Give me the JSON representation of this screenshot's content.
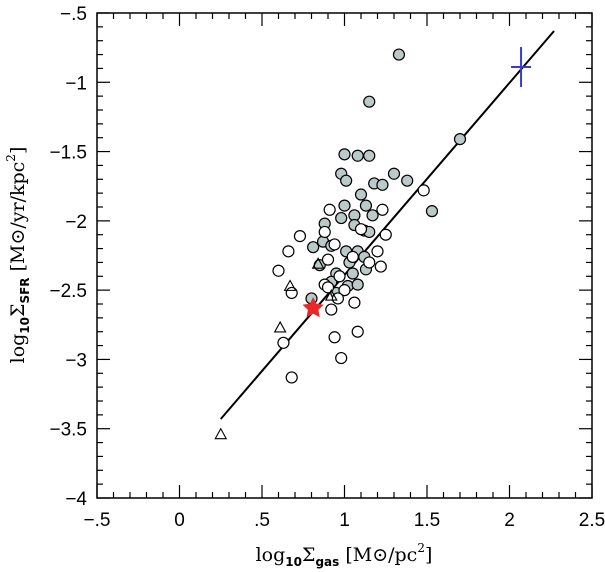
{
  "chart_data": {
    "type": "scatter",
    "title": "",
    "xlabel": {
      "base": "log",
      "base_sub": "10",
      "sym": "Σ",
      "sym_sub": "gas",
      "unit": " [M⊙/pc",
      "unit_sup": "2",
      "unit_end": "]"
    },
    "ylabel": {
      "base": "log",
      "base_sub": "10",
      "sym": "Σ",
      "sym_sub": "SFR",
      "unit": " [M⊙/yr/kpc",
      "unit_sup": "2",
      "unit_end": "]"
    },
    "xlim": [
      -0.5,
      2.5
    ],
    "ylim": [
      -4,
      -0.5
    ],
    "xticks": [
      -0.5,
      0,
      0.5,
      1,
      1.5,
      2,
      2.5
    ],
    "xtick_labels": [
      "−.5",
      "0",
      ".5",
      "1",
      "1.5",
      "2",
      "2.5"
    ],
    "yticks": [
      -4,
      -3.5,
      -3,
      -2.5,
      -2,
      -1.5,
      -1,
      -0.5
    ],
    "ytick_labels": [
      "−4",
      "−3.5",
      "−3",
      "−2.5",
      "−2",
      "−1.5",
      "−1",
      "−.5"
    ],
    "grid": false,
    "colors": {
      "filled": "#b9cac8",
      "star": "#e8282a",
      "cross": "#3a3acf"
    },
    "fit_line": {
      "x": [
        0.25,
        2.27
      ],
      "y": [
        -3.43,
        -0.63
      ]
    },
    "series": [
      {
        "name": "filled circles",
        "marker": "circle-filled",
        "points": [
          [
            1.33,
            -0.8
          ],
          [
            1.15,
            -1.14
          ],
          [
            1.7,
            -1.41
          ],
          [
            1.0,
            -1.52
          ],
          [
            1.08,
            -1.53
          ],
          [
            1.15,
            -1.53
          ],
          [
            0.98,
            -1.66
          ],
          [
            1.3,
            -1.66
          ],
          [
            1.01,
            -1.71
          ],
          [
            1.18,
            -1.73
          ],
          [
            1.23,
            -1.74
          ],
          [
            1.38,
            -1.71
          ],
          [
            1.1,
            -1.81
          ],
          [
            1.0,
            -1.89
          ],
          [
            1.13,
            -1.89
          ],
          [
            1.53,
            -1.93
          ],
          [
            0.98,
            -1.98
          ],
          [
            1.06,
            -1.96
          ],
          [
            1.17,
            -1.96
          ],
          [
            1.06,
            -2.03
          ],
          [
            0.88,
            -2.02
          ],
          [
            1.12,
            -2.07
          ],
          [
            1.15,
            -2.08
          ],
          [
            0.87,
            -2.15
          ],
          [
            0.81,
            -2.19
          ],
          [
            0.92,
            -2.18
          ],
          [
            1.01,
            -2.22
          ],
          [
            1.08,
            -2.22
          ],
          [
            1.12,
            -2.26
          ],
          [
            1.03,
            -2.3
          ],
          [
            0.85,
            -2.32
          ],
          [
            0.95,
            -2.38
          ],
          [
            1.05,
            -2.38
          ],
          [
            1.13,
            -2.35
          ],
          [
            0.92,
            -2.44
          ],
          [
            1.02,
            -2.47
          ],
          [
            1.08,
            -2.46
          ],
          [
            0.95,
            -2.52
          ],
          [
            0.8,
            -2.56
          ]
        ]
      },
      {
        "name": "open circles",
        "marker": "circle-open",
        "points": [
          [
            0.91,
            -1.92
          ],
          [
            1.23,
            -1.92
          ],
          [
            1.48,
            -1.78
          ],
          [
            1.1,
            -2.06
          ],
          [
            1.25,
            -2.1
          ],
          [
            0.73,
            -2.11
          ],
          [
            0.88,
            -2.08
          ],
          [
            0.94,
            -2.17
          ],
          [
            1.2,
            -2.22
          ],
          [
            0.66,
            -2.22
          ],
          [
            0.9,
            -2.28
          ],
          [
            1.05,
            -2.26
          ],
          [
            1.15,
            -2.3
          ],
          [
            1.22,
            -2.33
          ],
          [
            0.6,
            -2.36
          ],
          [
            0.97,
            -2.4
          ],
          [
            0.88,
            -2.46
          ],
          [
            0.9,
            -2.48
          ],
          [
            1.0,
            -2.5
          ],
          [
            0.68,
            -2.52
          ],
          [
            0.96,
            -2.56
          ],
          [
            0.92,
            -2.64
          ],
          [
            1.06,
            -2.59
          ],
          [
            0.94,
            -2.84
          ],
          [
            1.08,
            -2.8
          ],
          [
            0.98,
            -2.99
          ],
          [
            0.63,
            -2.88
          ],
          [
            0.68,
            -3.13
          ]
        ]
      },
      {
        "name": "triangles",
        "marker": "triangle-open",
        "points": [
          [
            0.25,
            -3.54
          ],
          [
            0.61,
            -2.77
          ],
          [
            0.67,
            -2.47
          ],
          [
            0.84,
            -2.31
          ],
          [
            0.92,
            -2.54
          ]
        ]
      },
      {
        "name": "star",
        "marker": "star",
        "points": [
          [
            0.81,
            -2.63
          ]
        ]
      },
      {
        "name": "cross",
        "marker": "cross",
        "points": [
          [
            2.07,
            -0.89
          ]
        ]
      }
    ]
  }
}
